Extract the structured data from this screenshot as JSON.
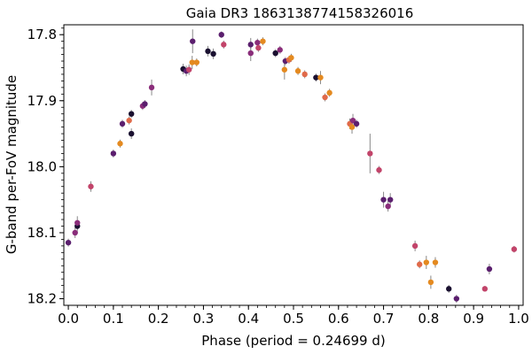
{
  "chart_data": {
    "type": "scatter",
    "title": "Gaia DR3 1863138774158326016",
    "xlabel": "Phase (period = 0.24699 d)",
    "ylabel": "G-band per-FoV magnitude",
    "xlim": [
      -0.01,
      1.01
    ],
    "ylim": [
      18.21,
      17.785
    ],
    "y_inverted": true,
    "xticks": [
      0.0,
      0.1,
      0.2,
      0.3,
      0.4,
      0.5,
      0.6,
      0.7,
      0.8,
      0.9,
      1.0
    ],
    "xtick_labels": [
      "0.0",
      "0.1",
      "0.2",
      "0.3",
      "0.4",
      "0.5",
      "0.6",
      "0.7",
      "0.8",
      "0.9",
      "1.0"
    ],
    "yticks": [
      17.8,
      17.9,
      18.0,
      18.1,
      18.2
    ],
    "ytick_labels": [
      "17.8",
      "17.9",
      "18.0",
      "18.1",
      "18.2"
    ],
    "grid": false,
    "legend": "none",
    "colors": [
      "#1a1030",
      "#5b1f6e",
      "#8a2d7a",
      "#c2446a",
      "#e06a4a",
      "#e48a20"
    ],
    "points": [
      {
        "x": 0.0,
        "y": 18.115,
        "err": 0.006,
        "c": 1
      },
      {
        "x": 0.015,
        "y": 18.1,
        "err": 0.008,
        "c": 2
      },
      {
        "x": 0.02,
        "y": 18.09,
        "err": 0.008,
        "c": 0
      },
      {
        "x": 0.02,
        "y": 18.085,
        "err": 0.01,
        "c": 2
      },
      {
        "x": 0.05,
        "y": 18.03,
        "err": 0.008,
        "c": 3
      },
      {
        "x": 0.1,
        "y": 17.98,
        "err": 0.006,
        "c": 1
      },
      {
        "x": 0.115,
        "y": 17.965,
        "err": 0.006,
        "c": 5
      },
      {
        "x": 0.12,
        "y": 17.935,
        "err": 0.006,
        "c": 1
      },
      {
        "x": 0.135,
        "y": 17.93,
        "err": 0.006,
        "c": 4
      },
      {
        "x": 0.14,
        "y": 17.92,
        "err": 0.006,
        "c": 0
      },
      {
        "x": 0.14,
        "y": 17.95,
        "err": 0.008,
        "c": 0
      },
      {
        "x": 0.165,
        "y": 17.908,
        "err": 0.006,
        "c": 2
      },
      {
        "x": 0.17,
        "y": 17.905,
        "err": 0.006,
        "c": 1
      },
      {
        "x": 0.185,
        "y": 17.88,
        "err": 0.012,
        "c": 2
      },
      {
        "x": 0.255,
        "y": 17.852,
        "err": 0.008,
        "c": 0
      },
      {
        "x": 0.262,
        "y": 17.855,
        "err": 0.008,
        "c": 1
      },
      {
        "x": 0.268,
        "y": 17.853,
        "err": 0.008,
        "c": 3
      },
      {
        "x": 0.275,
        "y": 17.842,
        "err": 0.01,
        "c": 5
      },
      {
        "x": 0.276,
        "y": 17.81,
        "err": 0.018,
        "c": 1
      },
      {
        "x": 0.285,
        "y": 17.842,
        "err": 0.006,
        "c": 5
      },
      {
        "x": 0.31,
        "y": 17.825,
        "err": 0.008,
        "c": 0
      },
      {
        "x": 0.322,
        "y": 17.829,
        "err": 0.008,
        "c": 0
      },
      {
        "x": 0.34,
        "y": 17.8,
        "err": 0.005,
        "c": 1
      },
      {
        "x": 0.345,
        "y": 17.815,
        "err": 0.006,
        "c": 3
      },
      {
        "x": 0.405,
        "y": 17.815,
        "err": 0.01,
        "c": 1
      },
      {
        "x": 0.405,
        "y": 17.828,
        "err": 0.012,
        "c": 2
      },
      {
        "x": 0.42,
        "y": 17.812,
        "err": 0.006,
        "c": 2
      },
      {
        "x": 0.422,
        "y": 17.82,
        "err": 0.006,
        "c": 3
      },
      {
        "x": 0.432,
        "y": 17.81,
        "err": 0.006,
        "c": 5
      },
      {
        "x": 0.46,
        "y": 17.828,
        "err": 0.006,
        "c": 0
      },
      {
        "x": 0.47,
        "y": 17.823,
        "err": 0.006,
        "c": 2
      },
      {
        "x": 0.48,
        "y": 17.853,
        "err": 0.015,
        "c": 5
      },
      {
        "x": 0.482,
        "y": 17.84,
        "err": 0.006,
        "c": 1
      },
      {
        "x": 0.49,
        "y": 17.838,
        "err": 0.006,
        "c": 4
      },
      {
        "x": 0.495,
        "y": 17.835,
        "err": 0.006,
        "c": 5
      },
      {
        "x": 0.51,
        "y": 17.855,
        "err": 0.006,
        "c": 5
      },
      {
        "x": 0.525,
        "y": 17.86,
        "err": 0.006,
        "c": 4
      },
      {
        "x": 0.55,
        "y": 17.865,
        "err": 0.006,
        "c": 0
      },
      {
        "x": 0.56,
        "y": 17.865,
        "err": 0.01,
        "c": 5
      },
      {
        "x": 0.57,
        "y": 17.895,
        "err": 0.006,
        "c": 4
      },
      {
        "x": 0.58,
        "y": 17.888,
        "err": 0.006,
        "c": 5
      },
      {
        "x": 0.625,
        "y": 17.935,
        "err": 0.008,
        "c": 4
      },
      {
        "x": 0.63,
        "y": 17.94,
        "err": 0.01,
        "c": 5
      },
      {
        "x": 0.632,
        "y": 17.93,
        "err": 0.01,
        "c": 2
      },
      {
        "x": 0.64,
        "y": 17.935,
        "err": 0.006,
        "c": 1
      },
      {
        "x": 0.67,
        "y": 17.98,
        "err": 0.03,
        "c": 3
      },
      {
        "x": 0.69,
        "y": 18.005,
        "err": 0.006,
        "c": 3
      },
      {
        "x": 0.7,
        "y": 18.05,
        "err": 0.012,
        "c": 1
      },
      {
        "x": 0.71,
        "y": 18.06,
        "err": 0.008,
        "c": 2
      },
      {
        "x": 0.715,
        "y": 18.05,
        "err": 0.01,
        "c": 1
      },
      {
        "x": 0.77,
        "y": 18.12,
        "err": 0.008,
        "c": 3
      },
      {
        "x": 0.78,
        "y": 18.148,
        "err": 0.006,
        "c": 4
      },
      {
        "x": 0.795,
        "y": 18.145,
        "err": 0.01,
        "c": 5
      },
      {
        "x": 0.805,
        "y": 18.175,
        "err": 0.01,
        "c": 5
      },
      {
        "x": 0.815,
        "y": 18.145,
        "err": 0.008,
        "c": 5
      },
      {
        "x": 0.845,
        "y": 18.185,
        "err": 0.006,
        "c": 0
      },
      {
        "x": 0.862,
        "y": 18.2,
        "err": 0.006,
        "c": 1
      },
      {
        "x": 0.925,
        "y": 18.185,
        "err": 0.004,
        "c": 3
      },
      {
        "x": 0.935,
        "y": 18.155,
        "err": 0.008,
        "c": 1
      },
      {
        "x": 0.99,
        "y": 18.125,
        "err": 0.005,
        "c": 3
      }
    ]
  }
}
